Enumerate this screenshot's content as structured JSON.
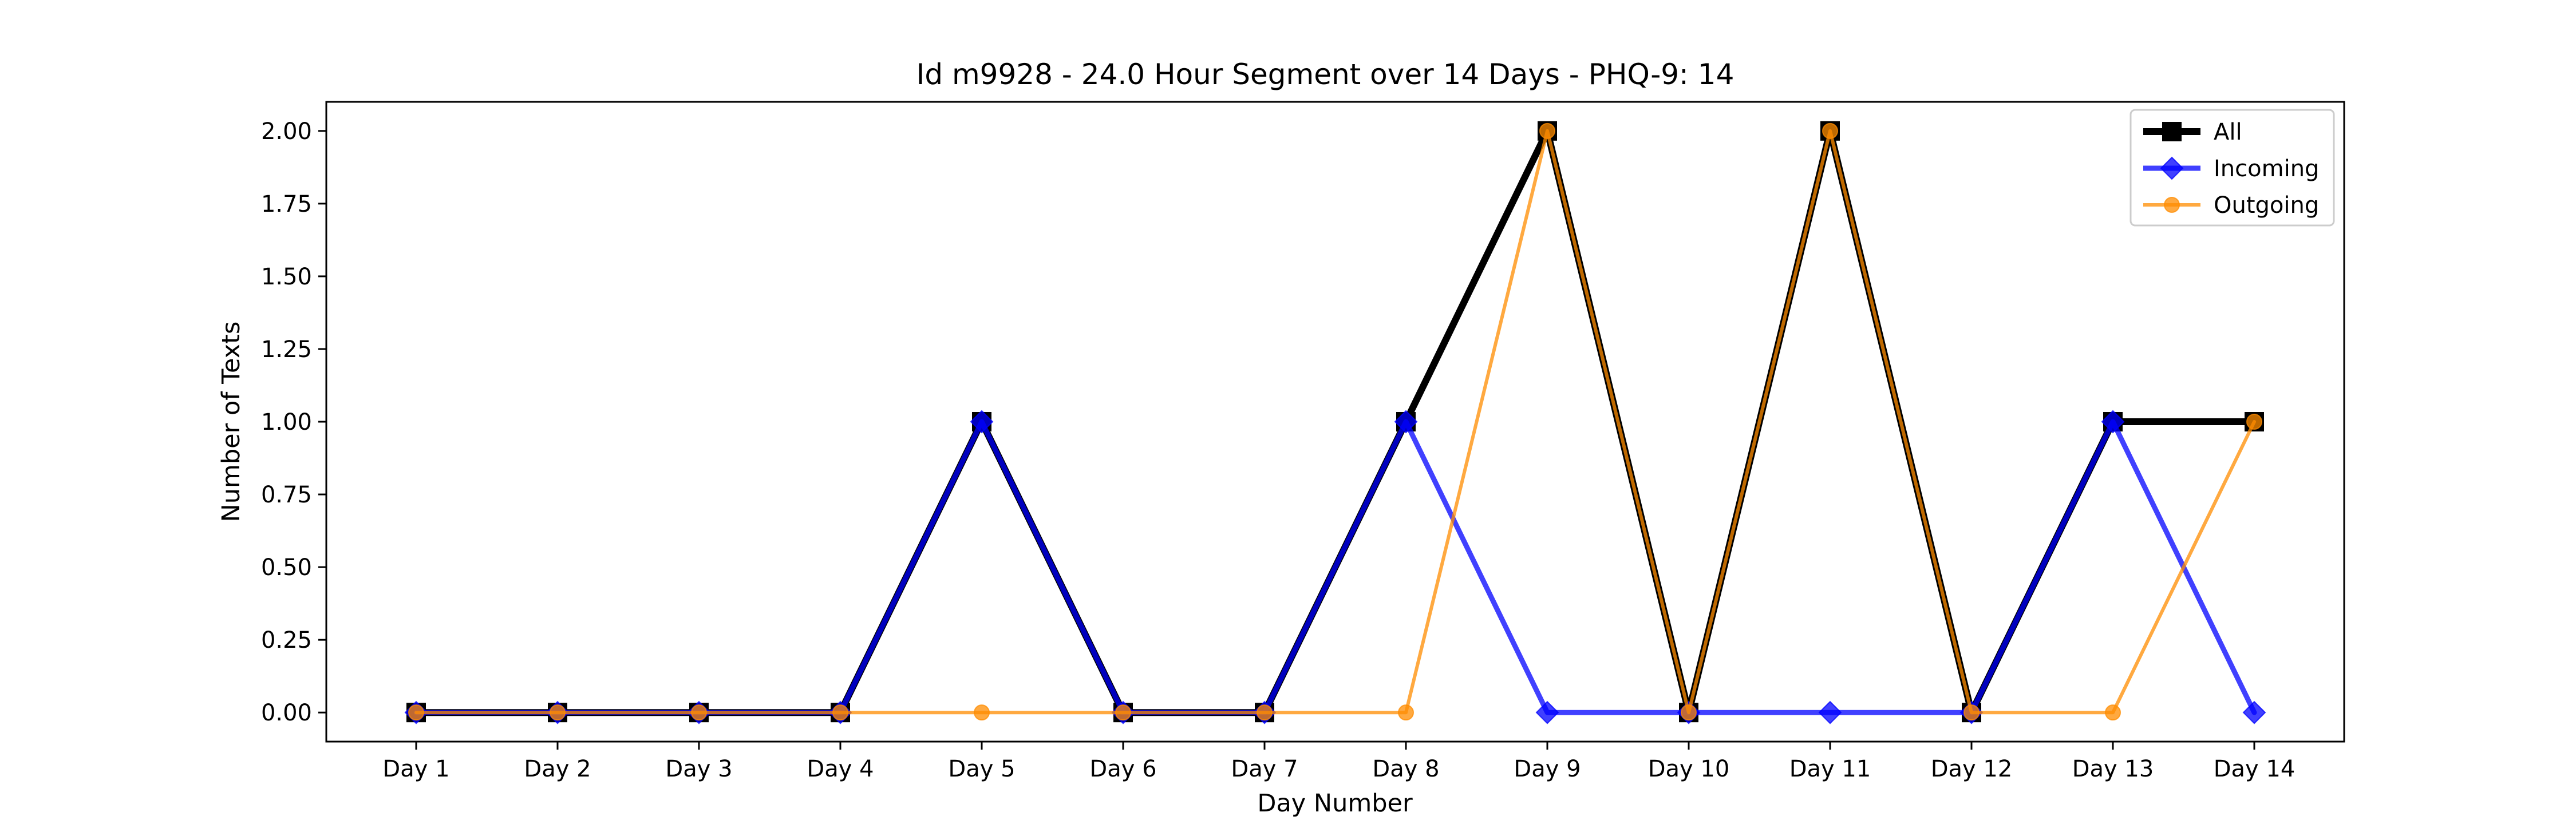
{
  "chart_data": {
    "type": "line",
    "title": "Id m9928 - 24.0 Hour Segment over 14 Days - PHQ-9: 14",
    "xlabel": "Day Number",
    "ylabel": "Number of Texts",
    "categories": [
      "Day 1",
      "Day 2",
      "Day 3",
      "Day 4",
      "Day 5",
      "Day 6",
      "Day 7",
      "Day 8",
      "Day 9",
      "Day 10",
      "Day 11",
      "Day 12",
      "Day 13",
      "Day 14"
    ],
    "ylim": [
      -0.1,
      2.1
    ],
    "yticks": [
      "0.00",
      "0.25",
      "0.50",
      "0.75",
      "1.00",
      "1.25",
      "1.50",
      "1.75",
      "2.00"
    ],
    "grid": false,
    "legend_position": "top-right",
    "series": [
      {
        "name": "All",
        "values": [
          0,
          0,
          0,
          0,
          1,
          0,
          0,
          1,
          2,
          0,
          2,
          0,
          1,
          1
        ],
        "color": "#000000",
        "marker": "square"
      },
      {
        "name": "Incoming",
        "values": [
          0,
          0,
          0,
          0,
          1,
          0,
          0,
          1,
          0,
          0,
          0,
          0,
          1,
          0
        ],
        "color": "#0000ff",
        "marker": "diamond"
      },
      {
        "name": "Outgoing",
        "values": [
          0,
          0,
          0,
          0,
          0,
          0,
          0,
          0,
          2,
          0,
          2,
          0,
          0,
          1
        ],
        "color": "#ff8c00",
        "marker": "circle"
      }
    ]
  }
}
